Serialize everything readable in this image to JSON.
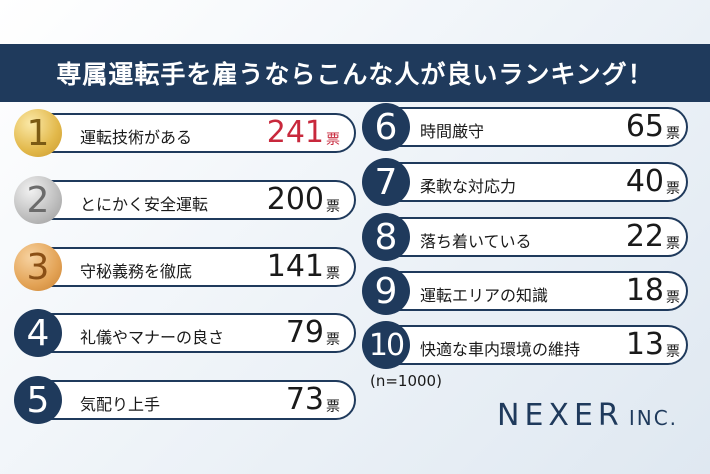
{
  "title": "専属運転手を雇うならこんな人が良いランキング！",
  "vote_unit": "票",
  "sample_note": "(n=1000)",
  "logo": {
    "main": "NEXER",
    "sub": "INC."
  },
  "colors": {
    "navy": "#1f3a5c",
    "red": "#c8283c",
    "gold": "#e2b84a",
    "silver": "#bdbdbd",
    "bronze": "#e3a356"
  },
  "left_items": [
    {
      "rank": "1",
      "label": "運転技術がある",
      "votes": "241"
    },
    {
      "rank": "2",
      "label": "とにかく安全運転",
      "votes": "200"
    },
    {
      "rank": "3",
      "label": "守秘義務を徹底",
      "votes": "141"
    },
    {
      "rank": "4",
      "label": "礼儀やマナーの良さ",
      "votes": "79"
    },
    {
      "rank": "5",
      "label": "気配り上手",
      "votes": "73"
    }
  ],
  "right_items": [
    {
      "rank": "6",
      "label": "時間厳守",
      "votes": "65"
    },
    {
      "rank": "7",
      "label": "柔軟な対応力",
      "votes": "40"
    },
    {
      "rank": "8",
      "label": "落ち着いている",
      "votes": "22"
    },
    {
      "rank": "9",
      "label": "運転エリアの知識",
      "votes": "18"
    },
    {
      "rank": "10",
      "label": "快適な車内環境の維持",
      "votes": "13"
    }
  ]
}
